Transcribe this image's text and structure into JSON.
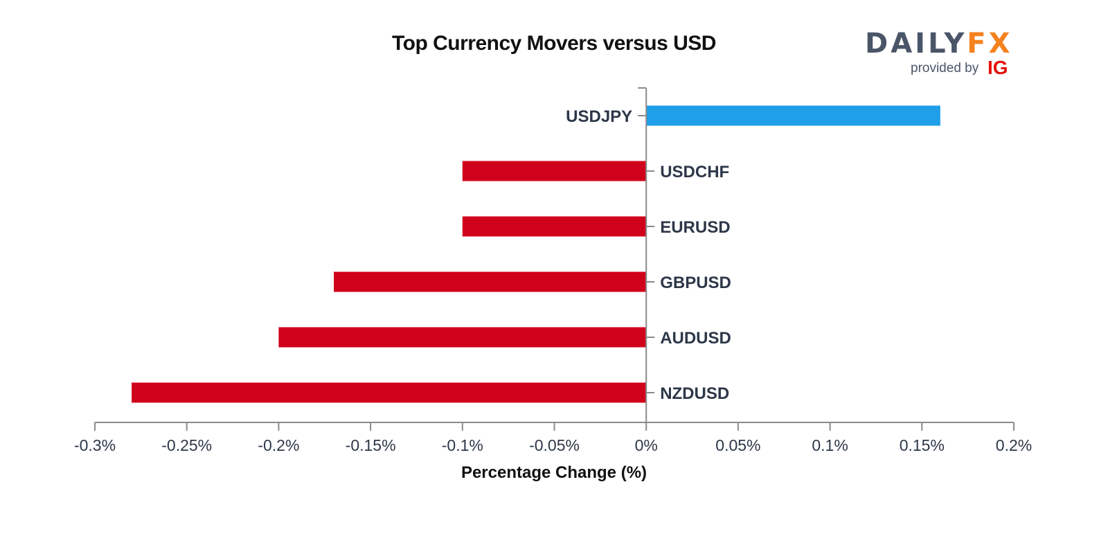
{
  "chart_data": {
    "type": "bar",
    "orientation": "horizontal",
    "title": "Top Currency Movers versus USD",
    "xlabel": "Percentage Change (%)",
    "ylabel": "",
    "categories": [
      "USDJPY",
      "USDCHF",
      "EURUSD",
      "GBPUSD",
      "AUDUSD",
      "NZDUSD"
    ],
    "values": [
      0.16,
      -0.1,
      -0.1,
      -0.17,
      -0.2,
      -0.28
    ],
    "xlim": [
      -0.3,
      0.2
    ],
    "xticks": [
      -0.3,
      -0.25,
      -0.2,
      -0.15,
      -0.1,
      -0.05,
      0,
      0.05,
      0.1,
      0.15,
      0.2
    ],
    "xtick_labels": [
      "-0.3%",
      "-0.25%",
      "-0.2%",
      "-0.15%",
      "-0.1%",
      "-0.05%",
      "0%",
      "0.05%",
      "0.1%",
      "0.15%",
      "0.2%"
    ],
    "grid": false,
    "colors": {
      "positive": "#1e9fe8",
      "negative": "#d0021b",
      "axis": "#8a8a8a",
      "label": "#2d3748"
    }
  },
  "logo": {
    "brand_left": "DA",
    "brand_i": "I",
    "brand_mid": "LY",
    "brand_right": "FX",
    "provided_by": "provided by",
    "ig": "IG",
    "colors": {
      "dark": "#4a5568",
      "orange": "#f5821f",
      "red": "#e3120b"
    }
  }
}
